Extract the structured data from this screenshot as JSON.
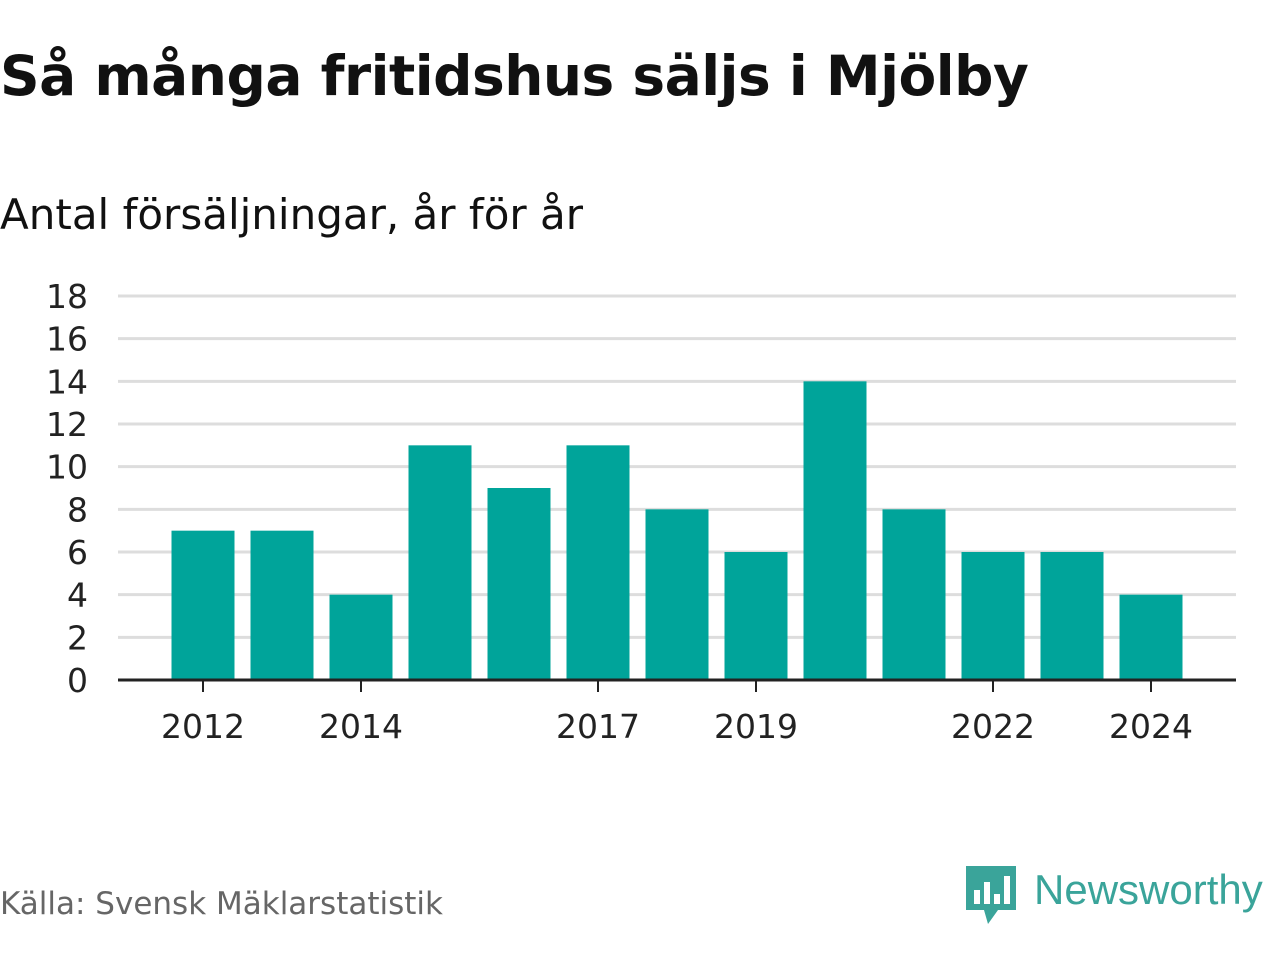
{
  "title": "Så många fritidshus säljs i Mjölby",
  "subtitle": "Antal försäljningar, år för år",
  "source": "Källa: Svensk Mäklarstatistik",
  "brand": "Newsworthy",
  "colors": {
    "bar": "#00a49a",
    "grid": "#dddddd",
    "axis": "#222222",
    "brand": "#3aa49a"
  },
  "chart_data": {
    "type": "bar",
    "x": [
      2012,
      2013,
      2014,
      2015,
      2016,
      2017,
      2018,
      2019,
      2020,
      2021,
      2022,
      2023,
      2024
    ],
    "values": [
      7,
      7,
      4,
      11,
      9,
      11,
      8,
      6,
      14,
      8,
      6,
      6,
      4
    ],
    "x_tick_labels": [
      "2012",
      "2014",
      "2017",
      "2019",
      "2022",
      "2024"
    ],
    "y_ticks": [
      0,
      2,
      4,
      6,
      8,
      10,
      12,
      14,
      16,
      18
    ],
    "ylim": [
      0,
      18
    ],
    "grid": true,
    "legend": "none"
  }
}
